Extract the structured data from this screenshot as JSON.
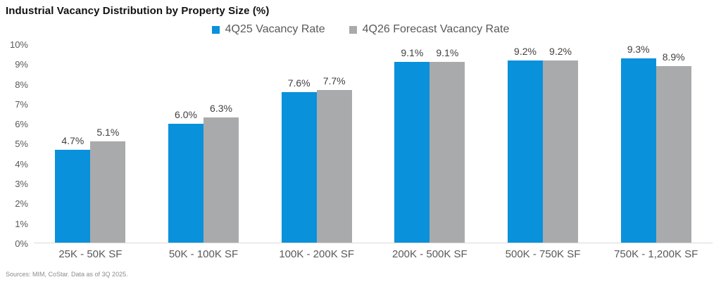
{
  "title": "Industrial Vacancy Distribution by Property Size (%)",
  "legend": [
    {
      "label": "4Q25 Vacancy Rate",
      "color": "#0991DB"
    },
    {
      "label": "4Q26 Forecast Vacancy Rate",
      "color": "#A9AAAC"
    }
  ],
  "footer": "Sources: MIM, CoStar. Data as of 3Q 2025.",
  "chart_data": {
    "type": "bar",
    "title": "Industrial Vacancy Distribution by Property Size (%)",
    "categories": [
      "25K - 50K SF",
      "50K - 100K SF",
      "100K - 200K SF",
      "200K - 500K SF",
      "500K - 750K SF",
      "750K - 1,200K SF"
    ],
    "series": [
      {
        "name": "4Q25 Vacancy Rate",
        "color": "#0991DB",
        "values": [
          4.7,
          6.0,
          7.6,
          9.1,
          9.2,
          9.3
        ]
      },
      {
        "name": "4Q26 Forecast Vacancy Rate",
        "color": "#A9AAAC",
        "values": [
          5.1,
          6.3,
          7.7,
          9.1,
          9.2,
          8.9
        ]
      }
    ],
    "data_labels": [
      [
        "4.7%",
        "6.0%",
        "7.6%",
        "9.1%",
        "9.2%",
        "9.3%"
      ],
      [
        "5.1%",
        "6.3%",
        "7.7%",
        "9.1%",
        "9.2%",
        "8.9%"
      ]
    ],
    "y_ticks": [
      "10%",
      "9%",
      "8%",
      "7%",
      "6%",
      "5%",
      "4%",
      "3%",
      "2%",
      "1%",
      "0%"
    ],
    "ylabel": "",
    "xlabel": "",
    "ylim": [
      0,
      10
    ],
    "grid": false,
    "legend_position": "top-center",
    "baseline_color": "#D9D9D9"
  }
}
